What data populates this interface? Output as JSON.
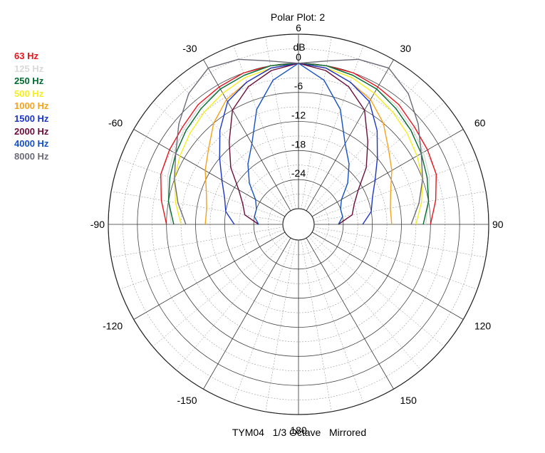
{
  "chart_data": {
    "type": "polar-line",
    "title": "Polar Plot: 2",
    "footer": "TYM04   1/3 Octave   Mirrored",
    "radial_unit": "dB",
    "radial_range": [
      -30,
      6
    ],
    "radial_ticks": [
      "6",
      "0",
      "-6",
      "-12",
      "-18",
      "-24"
    ],
    "radial_tick_values": [
      6,
      0,
      -6,
      -12,
      -18,
      -24
    ],
    "angle_ticks": [
      "-30",
      "30",
      "-60",
      "60",
      "-90",
      "90",
      "-120",
      "120",
      "-150",
      "150",
      "180"
    ],
    "angle_tick_values": [
      -30,
      30,
      -60,
      60,
      -90,
      90,
      -120,
      120,
      -150,
      150,
      180
    ],
    "mirrored": true,
    "legend_placement": "top-left",
    "series": [
      {
        "name": "63 Hz",
        "color": "#e8141c",
        "angles": [
          0,
          10,
          20,
          30,
          40,
          50,
          60,
          70,
          80,
          90
        ],
        "values": [
          0,
          0,
          0,
          -0.5,
          -1,
          -2,
          -2.5,
          -3,
          -4.5,
          -6
        ]
      },
      {
        "name": "125 Hz",
        "color": "#d9d9d9",
        "angles": [
          0,
          10,
          20,
          30,
          40,
          50,
          60,
          70,
          80,
          90
        ],
        "values": [
          0,
          0,
          -0.5,
          -1,
          -1.5,
          -2.5,
          -3.5,
          -4.5,
          -6,
          -7
        ]
      },
      {
        "name": "250 Hz",
        "color": "#006b2d",
        "angles": [
          0,
          10,
          20,
          30,
          40,
          50,
          60,
          70,
          80,
          90
        ],
        "values": [
          0,
          0,
          -0.5,
          -1,
          -2,
          -3,
          -4,
          -5,
          -6,
          -7.5
        ]
      },
      {
        "name": "500 Hz",
        "color": "#f5ee1e",
        "angles": [
          0,
          10,
          20,
          30,
          40,
          50,
          60,
          70,
          80,
          90
        ],
        "values": [
          0,
          -0.5,
          -1,
          -2,
          -3,
          -4,
          -5,
          -6,
          -7.5,
          -9
        ]
      },
      {
        "name": "1000 Hz",
        "color": "#f7a21b",
        "angles": [
          0,
          10,
          20,
          30,
          40,
          50,
          60,
          70,
          80,
          90
        ],
        "values": [
          0,
          -0.5,
          -2,
          -3.5,
          -6,
          -9,
          -11,
          -13,
          -14,
          -14
        ]
      },
      {
        "name": "1500 Hz",
        "color": "#1a35c9",
        "angles": [
          0,
          10,
          20,
          30,
          40,
          50,
          60,
          70,
          80,
          90
        ],
        "values": [
          0,
          -0.5,
          -2,
          -4,
          -8,
          -12,
          -15,
          -17,
          -18,
          -20
        ]
      },
      {
        "name": "2000 Hz",
        "color": "#6b0d3a",
        "angles": [
          0,
          10,
          20,
          30,
          40,
          50,
          60,
          70,
          80,
          90
        ],
        "values": [
          0,
          -1,
          -3,
          -6,
          -11,
          -15,
          -19,
          -21,
          -22,
          -25
        ]
      },
      {
        "name": "4000 Hz",
        "color": "#1450c4",
        "angles": [
          0,
          10,
          20,
          30,
          40,
          50,
          60,
          70,
          80,
          90
        ],
        "values": [
          0,
          -3,
          -8,
          -14,
          -17,
          -20,
          -23,
          -24,
          -24,
          -25
        ]
      },
      {
        "name": "8000 Hz",
        "color": "#6b6b78",
        "angles": [
          0,
          10,
          20,
          30,
          40,
          50,
          60,
          70,
          80,
          90
        ],
        "values": [
          0,
          1,
          3,
          4,
          2,
          -1,
          -4,
          -6,
          -8,
          -10
        ]
      }
    ]
  }
}
